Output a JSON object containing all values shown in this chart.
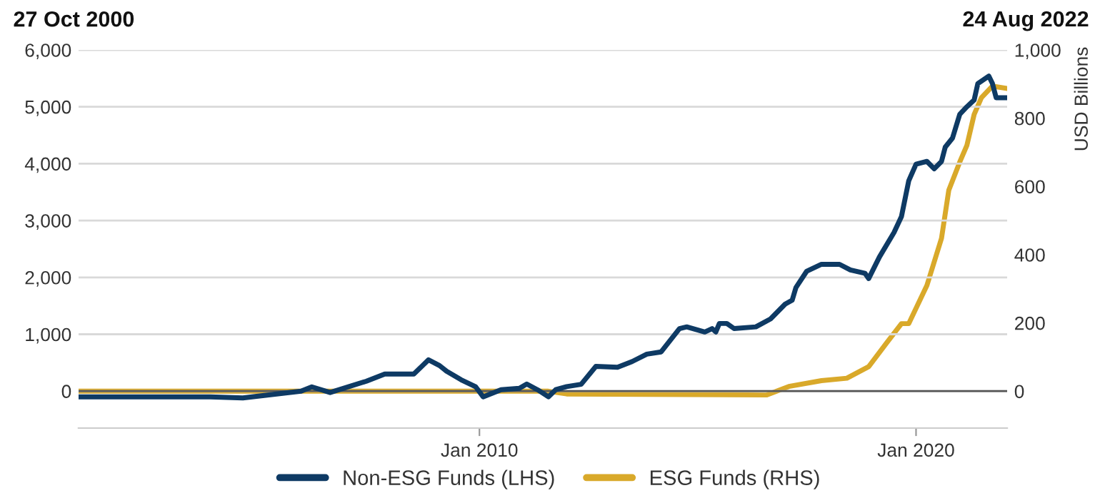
{
  "chart_data": {
    "type": "line",
    "annotations": [
      "27 Oct 2000",
      "24 Aug 2022"
    ],
    "y2label": "USD Billions",
    "xlim": [
      "2000-10-27",
      "2022-02"
    ],
    "xticks": [
      {
        "value": "2010-01",
        "label": "Jan 2010"
      },
      {
        "value": "2020-01",
        "label": "Jan 2020"
      }
    ],
    "ylim": [
      -650,
      6000
    ],
    "yticks": [
      {
        "value": 0,
        "label": "0"
      },
      {
        "value": 1000,
        "label": "1,000"
      },
      {
        "value": 2000,
        "label": "2,000"
      },
      {
        "value": 3000,
        "label": "3,000"
      },
      {
        "value": 4000,
        "label": "4,000"
      },
      {
        "value": 5000,
        "label": "5,000"
      },
      {
        "value": 6000,
        "label": "6,000"
      }
    ],
    "y2lim": [
      -108,
      1000
    ],
    "y2ticks": [
      0,
      200,
      400,
      600,
      800,
      {
        "value": 1000,
        "label": "1,000"
      }
    ],
    "grid": "y",
    "legend": "bottom",
    "marker": "none",
    "line_style": "solid",
    "ref_lines": [
      {
        "axis": "y",
        "value": 0,
        "label": null,
        "color": "#555555"
      }
    ],
    "series": [
      {
        "name": "Non-ESG Funds (LHS)",
        "color": "#0e3a64",
        "x": [
          "2000-10-27",
          "2003-11",
          "2004-08",
          "2005-12",
          "2006-03",
          "2006-08",
          "2007-06",
          "2007-11",
          "2008-07",
          "2008-11",
          "2009-02",
          "2009-04",
          "2009-08",
          "2009-12",
          "2010-02",
          "2010-07",
          "2010-12",
          "2011-02",
          "2011-05",
          "2011-08",
          "2011-10",
          "2012-01",
          "2012-05",
          "2012-09",
          "2013-03",
          "2013-07",
          "2013-11",
          "2014-03",
          "2014-08",
          "2014-10",
          "2015-03",
          "2015-05",
          "2015-06",
          "2015-07",
          "2015-09",
          "2015-11",
          "2016-05",
          "2016-09",
          "2017-01",
          "2017-03",
          "2017-04",
          "2017-07",
          "2017-11",
          "2018-04",
          "2018-07",
          "2018-11",
          "2018-12",
          "2019-03",
          "2019-07",
          "2019-09",
          "2019-11",
          "2020-01",
          "2020-04",
          "2020-06",
          "2020-08",
          "2020-09",
          "2020-11",
          "2021-01",
          "2021-03",
          "2021-05",
          "2021-06",
          "2021-09",
          "2021-10",
          "2021-11",
          "2022-02"
        ],
        "values": [
          -100,
          -100,
          -120,
          0,
          75,
          -25,
          175,
          300,
          300,
          550,
          450,
          350,
          200,
          75,
          -100,
          25,
          50,
          125,
          25,
          -100,
          25,
          80,
          120,
          435,
          420,
          520,
          650,
          690,
          1100,
          1130,
          1040,
          1100,
          1040,
          1190,
          1190,
          1100,
          1130,
          1270,
          1530,
          1600,
          1820,
          2110,
          2230,
          2230,
          2130,
          2070,
          1980,
          2360,
          2790,
          3070,
          3700,
          3990,
          4040,
          3910,
          4040,
          4290,
          4450,
          4870,
          5000,
          5120,
          5410,
          5540,
          5410,
          5160,
          5160
        ]
      },
      {
        "name": "ESG Funds (RHS)",
        "color": "#d9a92a",
        "axis": "y2",
        "x": [
          "2000-10-27",
          "2011-08",
          "2012-01",
          "2016-08",
          "2017-02",
          "2017-11",
          "2018-06",
          "2018-12",
          "2019-05",
          "2019-09",
          "2019-11",
          "2020-04",
          "2020-08",
          "2020-10",
          "2021-01",
          "2021-03",
          "2021-05",
          "2021-07",
          "2021-10",
          "2022-02"
        ],
        "values": [
          0,
          0,
          -8,
          -11,
          14,
          31,
          38,
          72,
          142,
          198,
          198,
          310,
          448,
          589,
          672,
          720,
          811,
          860,
          894,
          887
        ]
      }
    ]
  }
}
